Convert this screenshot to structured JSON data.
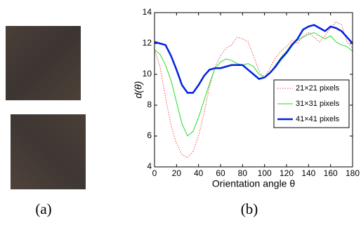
{
  "chart_data": {
    "type": "line",
    "x_label": "Orientation angle θ",
    "y_label": "d(θ)",
    "x": [
      0,
      5,
      10,
      15,
      20,
      25,
      30,
      35,
      40,
      45,
      50,
      55,
      60,
      65,
      70,
      75,
      80,
      85,
      90,
      95,
      100,
      105,
      110,
      115,
      120,
      125,
      130,
      135,
      140,
      145,
      150,
      155,
      160,
      165,
      170,
      175,
      180
    ],
    "series": [
      {
        "name": "21×21 pixels",
        "color": "#ff4040",
        "linewidth": 1,
        "linestyle": "dotted",
        "values": [
          11.6,
          10.5,
          8.5,
          6.7,
          5.5,
          4.8,
          4.6,
          5.0,
          6.0,
          7.5,
          9.2,
          10.5,
          11.2,
          11.7,
          11.9,
          12.4,
          12.3,
          12.1,
          11.2,
          10.2,
          9.8,
          10.4,
          11.1,
          11.5,
          11.8,
          12.2,
          12.0,
          12.5,
          12.7,
          12.4,
          12.1,
          12.5,
          13.0,
          13.4,
          13.2,
          12.1,
          11.7
        ]
      },
      {
        "name": "31×31 pixels",
        "color": "#22dd22",
        "linewidth": 1,
        "linestyle": "solid",
        "values": [
          11.6,
          11.3,
          10.6,
          9.6,
          8.2,
          6.8,
          6.0,
          6.3,
          7.2,
          8.3,
          9.4,
          10.4,
          10.8,
          11.0,
          10.9,
          10.7,
          10.6,
          10.7,
          10.5,
          10.0,
          9.8,
          10.1,
          10.6,
          11.1,
          11.5,
          12.0,
          12.2,
          12.4,
          12.6,
          12.7,
          12.5,
          12.3,
          12.5,
          12.1,
          11.9,
          11.8,
          11.5
        ]
      },
      {
        "name": "41×41 pixels",
        "color": "#0022dd",
        "linewidth": 2.5,
        "linestyle": "solid",
        "values": [
          12.1,
          12.0,
          11.9,
          11.2,
          10.3,
          9.3,
          8.8,
          8.8,
          9.3,
          9.9,
          10.3,
          10.4,
          10.4,
          10.5,
          10.6,
          10.6,
          10.6,
          10.3,
          10.0,
          9.7,
          9.8,
          10.1,
          10.5,
          11.0,
          11.4,
          11.9,
          12.3,
          12.9,
          13.1,
          13.2,
          13.0,
          12.8,
          13.1,
          13.0,
          12.8,
          12.4,
          12.0
        ]
      }
    ],
    "xlim": [
      0,
      180
    ],
    "xticks": [
      0,
      20,
      40,
      60,
      80,
      100,
      120,
      140,
      160,
      180
    ],
    "ylim": [
      4,
      14
    ],
    "yticks": [
      4,
      6,
      8,
      10,
      12,
      14
    ],
    "legend": "right",
    "grid": false
  },
  "captions": [
    "(a)",
    "(b)"
  ]
}
